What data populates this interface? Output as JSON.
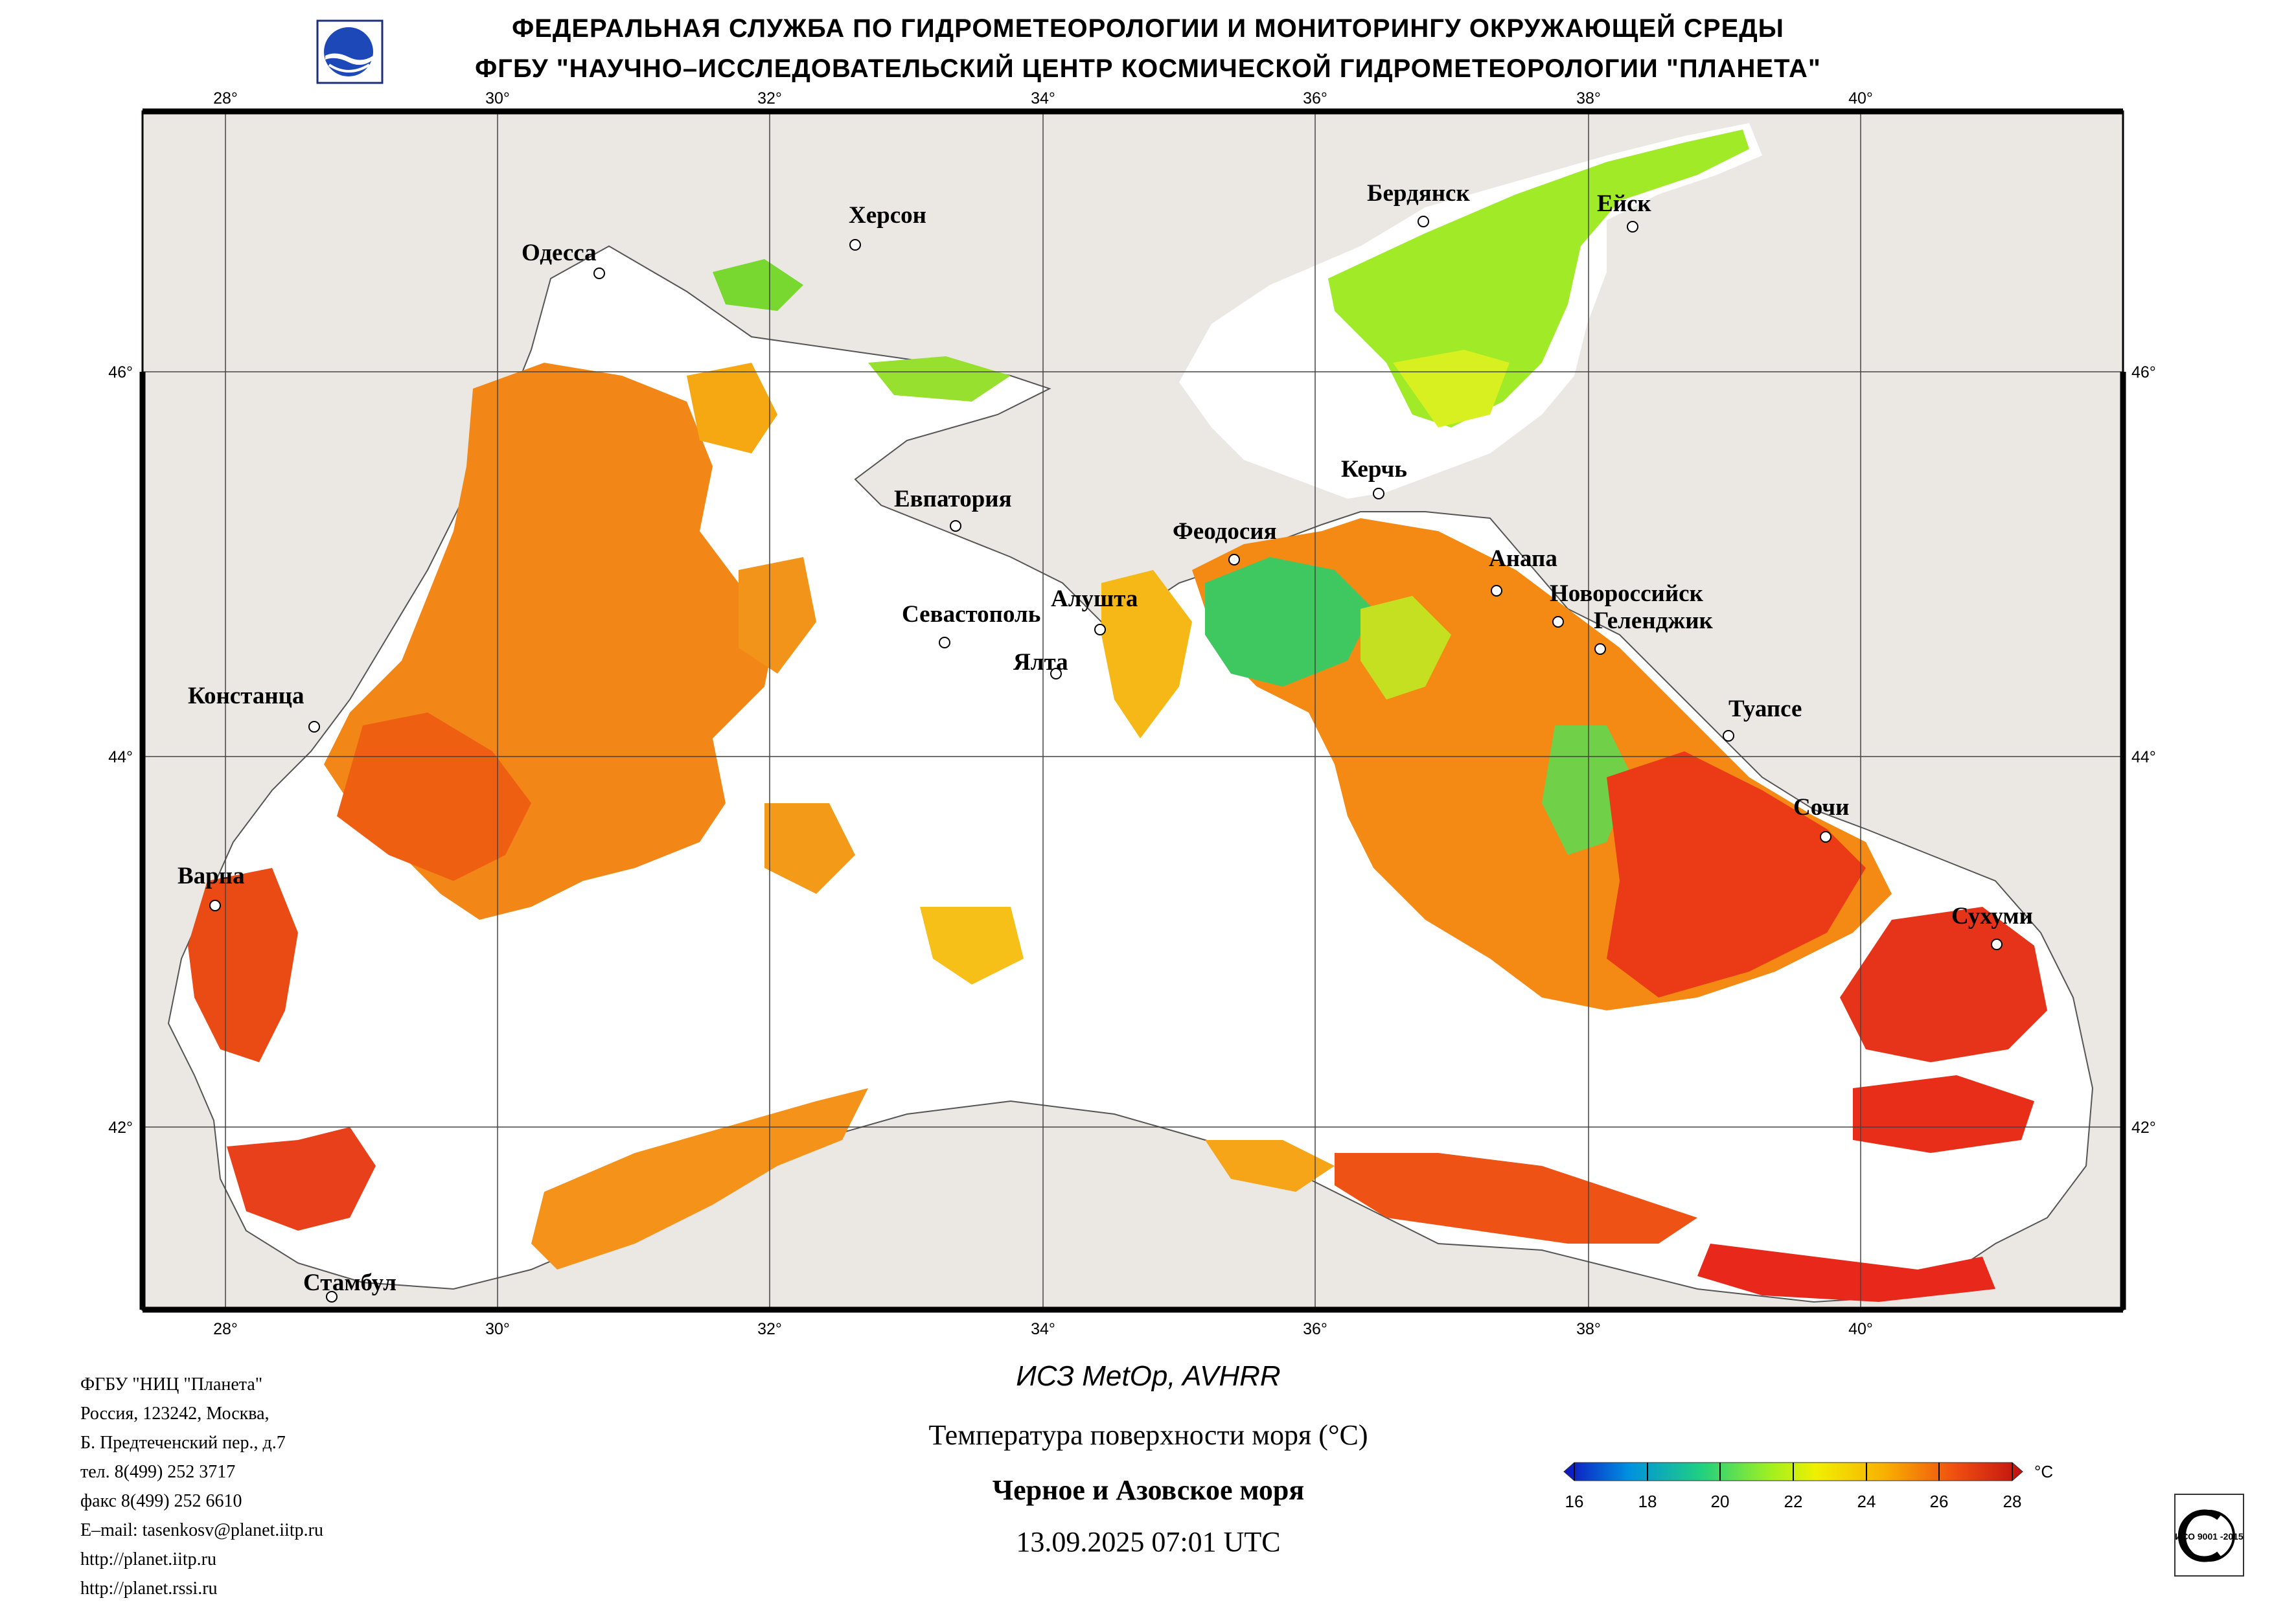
{
  "header": {
    "line1": "ФЕДЕРАЛЬНАЯ СЛУЖБА ПО ГИДРОМЕТЕОРОЛОГИИ И МОНИТОРИНГУ ОКРУЖАЮЩЕЙ СРЕДЫ",
    "line2": "ФГБУ \"НАУЧНО–ИССЛЕДОВАТЕЛЬСКИЙ ЦЕНТР КОСМИЧЕСКОЙ ГИДРОМЕТЕОРОЛОГИИ \"ПЛАНЕТА\""
  },
  "map": {
    "lon_labels": [
      "28°",
      "30°",
      "32°",
      "34°",
      "36°",
      "38°",
      "40°"
    ],
    "lat_labels": [
      "46°",
      "44°",
      "42°"
    ],
    "cities": [
      "Одесса",
      "Херсон",
      "Бердянск",
      "Ейск",
      "Евпатория",
      "Керчь",
      "Феодосия",
      "Анапа",
      "Новороссийск",
      "Геленджик",
      "Севастополь",
      "Алушта",
      "Ялта",
      "Констанца",
      "Туапсе",
      "Сочи",
      "Варна",
      "Сухуми",
      "Стамбул"
    ],
    "colors": {
      "land": "#ebe8e4",
      "cloud": "#ffffff",
      "sst_warm": "#f07a10",
      "sst_hot": "#e82a18",
      "sst_mid": "#f6c20c",
      "sst_cool": "#8ee030",
      "sst_cold": "#30c870"
    }
  },
  "info": {
    "lines": [
      "ФГБУ \"НИЦ \"Планета\"",
      "Россия, 123242, Москва,",
      "Б. Предтеченский пер., д.7",
      "тел. 8(499) 252 3717",
      "факс 8(499) 252 6610",
      "E–mail: tasenkosv@planet.iitp.ru",
      "http://planet.iitp.ru",
      "http://planet.rssi.ru"
    ]
  },
  "product": {
    "satellite": "ИСЗ MetOp, AVHRR",
    "parameter": "Температура поверхности моря (°C)",
    "region": "Черное и Азовское моря",
    "datetime": "13.09.2025 07:01 UTC"
  },
  "legend": {
    "unit": "°C",
    "ticks": [
      "16",
      "18",
      "20",
      "22",
      "24",
      "26",
      "28"
    ],
    "min": 16,
    "max": 28,
    "colors": [
      "#1010c0",
      "#0090e0",
      "#20d080",
      "#a0f020",
      "#f0f000",
      "#f8b000",
      "#f05010",
      "#c01010"
    ]
  },
  "iso_badge": {
    "text": "ИСО 9001 -2015"
  }
}
